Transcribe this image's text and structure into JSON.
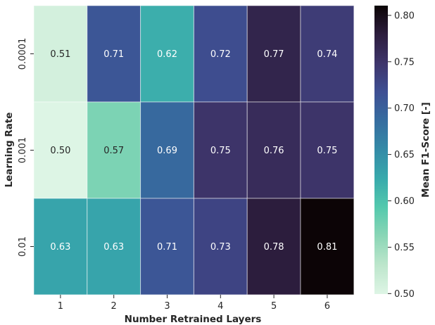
{
  "chart_data": {
    "type": "heatmap",
    "title": "",
    "xlabel": "Number Retrained Layers",
    "ylabel": "Learning Rate",
    "x_categories": [
      "1",
      "2",
      "3",
      "4",
      "5",
      "6"
    ],
    "y_categories": [
      "0.0001",
      "0.001",
      "0.01"
    ],
    "values": [
      [
        0.51,
        0.71,
        0.62,
        0.72,
        0.77,
        0.74
      ],
      [
        0.5,
        0.57,
        0.69,
        0.75,
        0.76,
        0.75
      ],
      [
        0.63,
        0.63,
        0.71,
        0.73,
        0.78,
        0.81
      ]
    ],
    "cell_labels": [
      [
        "0.51",
        "0.71",
        "0.62",
        "0.72",
        "0.77",
        "0.74"
      ],
      [
        "0.50",
        "0.57",
        "0.69",
        "0.75",
        "0.76",
        "0.75"
      ],
      [
        "0.63",
        "0.63",
        "0.71",
        "0.73",
        "0.78",
        "0.81"
      ]
    ],
    "colorbar": {
      "label": "Mean F1-Score [-]",
      "range": [
        0.4995,
        0.8105
      ],
      "ticks": [
        "0.50",
        "0.55",
        "0.60",
        "0.65",
        "0.70",
        "0.75",
        "0.80"
      ],
      "colormap": "mako_r",
      "color_stops": [
        "#def5e5",
        "#bde6cc",
        "#8bd6b6",
        "#54c9ad",
        "#38aaac",
        "#348ba7",
        "#366da0",
        "#3e4f93",
        "#3e356b",
        "#2d1e3e",
        "#0b0405"
      ]
    },
    "grid": false
  }
}
